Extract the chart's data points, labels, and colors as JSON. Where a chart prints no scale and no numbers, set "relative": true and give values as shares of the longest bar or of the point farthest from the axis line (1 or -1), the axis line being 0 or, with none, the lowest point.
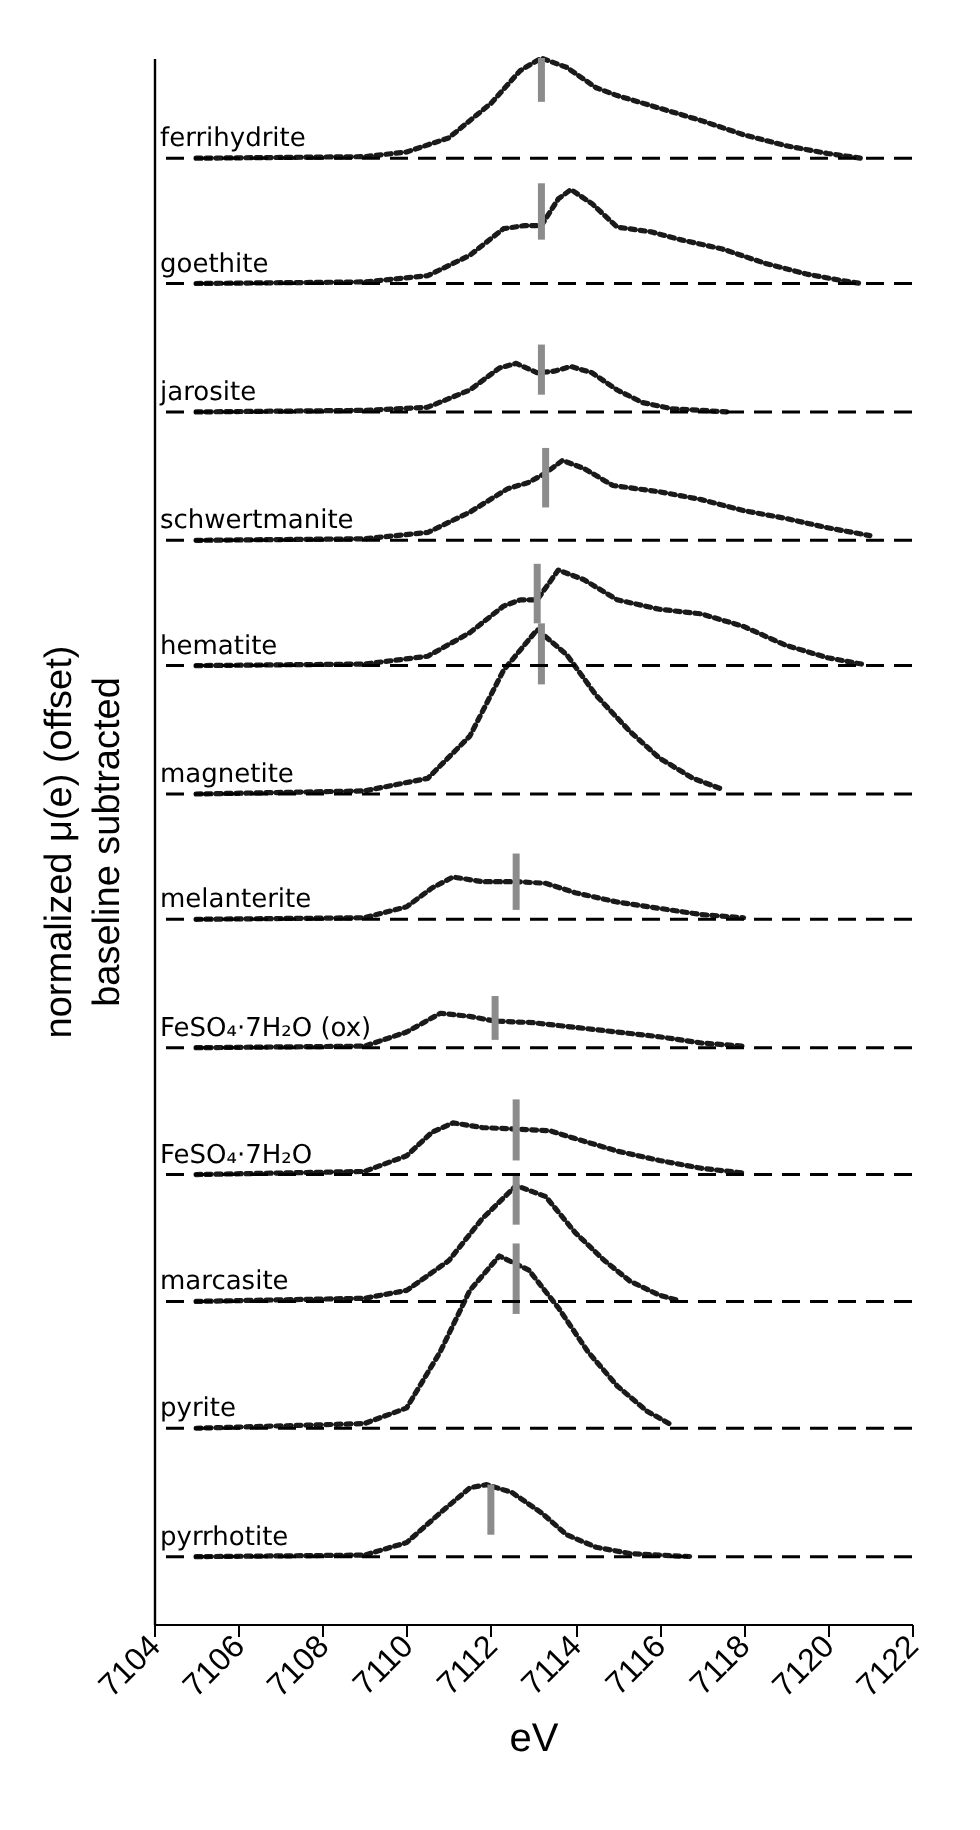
{
  "chart_data": {
    "type": "line",
    "relative": true,
    "xlabel": "eV",
    "ylabel": "normalized μ(e) (offset)\nbaseline subtracted",
    "xlim": [
      7104,
      7122
    ],
    "xticks": [
      7104,
      7106,
      7108,
      7110,
      7112,
      7114,
      7116,
      7118,
      7120,
      7122
    ],
    "line_style": "dotted",
    "ref_lines": [
      {
        "axis": "y",
        "value": 0.936,
        "color": "#000000",
        "line_style": "dashed"
      },
      {
        "axis": "y",
        "value": 0.856,
        "color": "#000000",
        "line_style": "dashed"
      },
      {
        "axis": "y",
        "value": 0.774,
        "color": "#000000",
        "line_style": "dashed"
      },
      {
        "axis": "y",
        "value": 0.692,
        "color": "#000000",
        "line_style": "dashed"
      },
      {
        "axis": "y",
        "value": 0.612,
        "color": "#000000",
        "line_style": "dashed"
      },
      {
        "axis": "y",
        "value": 0.53,
        "color": "#000000",
        "line_style": "dashed"
      },
      {
        "axis": "y",
        "value": 0.45,
        "color": "#000000",
        "line_style": "dashed"
      },
      {
        "axis": "y",
        "value": 0.368,
        "color": "#000000",
        "line_style": "dashed"
      },
      {
        "axis": "y",
        "value": 0.287,
        "color": "#000000",
        "line_style": "dashed"
      },
      {
        "axis": "y",
        "value": 0.206,
        "color": "#000000",
        "line_style": "dashed"
      },
      {
        "axis": "y",
        "value": 0.125,
        "color": "#000000",
        "line_style": "dashed"
      },
      {
        "axis": "y",
        "value": 0.043,
        "color": "#000000",
        "line_style": "dashed"
      }
    ],
    "series": [
      {
        "name": "ferrihydrite",
        "color": "#1a1a1a",
        "x": [
          7105,
          7109,
          7110,
          7111,
          7112,
          7112.7,
          7113.2,
          7113.8,
          7114.5,
          7115,
          7116,
          7117,
          7118,
          7119,
          7120,
          7120.8
        ],
        "values": [
          0.936,
          0.937,
          0.94,
          0.949,
          0.971,
          0.992,
          1.0,
          0.994,
          0.981,
          0.976,
          0.968,
          0.96,
          0.951,
          0.944,
          0.939,
          0.936
        ]
      },
      {
        "name": "goethite",
        "color": "#1a1a1a",
        "x": [
          7105,
          7109,
          7110.5,
          7111.5,
          7112.3,
          7112.8,
          7113.2,
          7113.6,
          7113.9,
          7114.4,
          7115,
          7115.8,
          7116.5,
          7117.5,
          7118.5,
          7119.5,
          7120.3,
          7120.8
        ],
        "values": [
          0.856,
          0.857,
          0.861,
          0.874,
          0.891,
          0.893,
          0.893,
          0.91,
          0.916,
          0.907,
          0.892,
          0.889,
          0.884,
          0.878,
          0.869,
          0.862,
          0.858,
          0.856
        ]
      },
      {
        "name": "jarosite",
        "color": "#1a1a1a",
        "x": [
          7105,
          7109,
          7110.5,
          7111.5,
          7112.2,
          7112.6,
          7113.1,
          7113.5,
          7113.9,
          7114.4,
          7115,
          7115.6,
          7116.3,
          7117,
          7117.6
        ],
        "values": [
          0.774,
          0.775,
          0.777,
          0.788,
          0.802,
          0.805,
          0.799,
          0.8,
          0.803,
          0.799,
          0.788,
          0.78,
          0.776,
          0.775,
          0.774
        ]
      },
      {
        "name": "schwertmanite",
        "color": "#1a1a1a",
        "x": [
          7105,
          7109,
          7110.5,
          7111.5,
          7112.4,
          7112.9,
          7113.3,
          7113.7,
          7114.2,
          7114.9,
          7116,
          7117,
          7118,
          7119,
          7120,
          7121
        ],
        "values": [
          0.692,
          0.693,
          0.697,
          0.71,
          0.725,
          0.729,
          0.735,
          0.743,
          0.738,
          0.727,
          0.723,
          0.718,
          0.711,
          0.706,
          0.7,
          0.695
        ]
      },
      {
        "name": "hematite",
        "color": "#1a1a1a",
        "x": [
          7105,
          7109,
          7110.5,
          7111.5,
          7112.3,
          7112.7,
          7113.1,
          7113.6,
          7114.2,
          7115,
          7116,
          7117,
          7118,
          7119,
          7120,
          7120.8
        ],
        "values": [
          0.612,
          0.613,
          0.618,
          0.633,
          0.65,
          0.654,
          0.654,
          0.673,
          0.667,
          0.654,
          0.648,
          0.645,
          0.637,
          0.625,
          0.617,
          0.613
        ]
      },
      {
        "name": "magnetite",
        "color": "#1a1a1a",
        "x": [
          7105,
          7109,
          7110.5,
          7111.5,
          7112.3,
          7113.1,
          7113.8,
          7114.5,
          7115.3,
          7116,
          7116.8,
          7117.5
        ],
        "values": [
          0.53,
          0.532,
          0.54,
          0.567,
          0.609,
          0.635,
          0.619,
          0.593,
          0.57,
          0.553,
          0.54,
          0.533
        ]
      },
      {
        "name": "melanterite",
        "color": "#1a1a1a",
        "x": [
          7105,
          7109,
          7110,
          7110.6,
          7111.1,
          7111.8,
          7112.6,
          7113.3,
          7114,
          7115,
          7116,
          7117,
          7118
        ],
        "values": [
          0.45,
          0.451,
          0.458,
          0.47,
          0.477,
          0.474,
          0.474,
          0.473,
          0.467,
          0.461,
          0.457,
          0.453,
          0.451
        ]
      },
      {
        "name": "FeSO₄·7H₂O (ox)",
        "color": "#1a1a1a",
        "x": [
          7105,
          7109,
          7110,
          7110.8,
          7111.5,
          7112.1,
          7113,
          7114,
          7115,
          7116,
          7117,
          7118
        ],
        "values": [
          0.368,
          0.369,
          0.378,
          0.39,
          0.388,
          0.385,
          0.384,
          0.381,
          0.378,
          0.375,
          0.371,
          0.369
        ]
      },
      {
        "name": "FeSO₄·7H₂O",
        "color": "#1a1a1a",
        "x": [
          7105,
          7109,
          7110,
          7110.6,
          7111.1,
          7111.8,
          7112.6,
          7113.4,
          7114,
          7115,
          7116,
          7117,
          7118
        ],
        "values": [
          0.287,
          0.289,
          0.299,
          0.314,
          0.32,
          0.317,
          0.316,
          0.315,
          0.31,
          0.302,
          0.296,
          0.291,
          0.288
        ]
      },
      {
        "name": "marcasite",
        "color": "#1a1a1a",
        "x": [
          7105,
          7109,
          7110,
          7111,
          7111.8,
          7112.6,
          7113.3,
          7114,
          7114.7,
          7115.3,
          7116,
          7116.4
        ],
        "values": [
          0.206,
          0.208,
          0.213,
          0.232,
          0.259,
          0.28,
          0.273,
          0.25,
          0.232,
          0.219,
          0.21,
          0.207
        ]
      },
      {
        "name": "pyrite",
        "color": "#1a1a1a",
        "x": [
          7105,
          7109,
          7110,
          7110.8,
          7111.5,
          7112.2,
          7112.9,
          7113.6,
          7114.3,
          7115,
          7115.7,
          7116.3
        ],
        "values": [
          0.125,
          0.128,
          0.138,
          0.174,
          0.213,
          0.235,
          0.226,
          0.202,
          0.174,
          0.152,
          0.136,
          0.127
        ]
      },
      {
        "name": "pyrrhotite",
        "color": "#1a1a1a",
        "x": [
          7105,
          7109,
          7110,
          7110.8,
          7111.5,
          7111.9,
          7112.5,
          7113.2,
          7113.8,
          7114.5,
          7115.3,
          7116,
          7116.8
        ],
        "values": [
          0.043,
          0.044,
          0.052,
          0.071,
          0.087,
          0.089,
          0.084,
          0.071,
          0.057,
          0.049,
          0.045,
          0.044,
          0.043
        ]
      },
      {
        "color": "#8c8c8c",
        "line_style": "solid",
        "x": [
          7113.2,
          7113.2
        ],
        "values": [
          0.972,
          1.0
        ]
      },
      {
        "color": "#8c8c8c",
        "line_style": "solid",
        "x": [
          7113.2,
          7113.2
        ],
        "values": [
          0.884,
          0.92
        ]
      },
      {
        "color": "#8c8c8c",
        "line_style": "solid",
        "x": [
          7113.2,
          7113.2
        ],
        "values": [
          0.785,
          0.817
        ]
      },
      {
        "color": "#8c8c8c",
        "line_style": "solid",
        "x": [
          7113.3,
          7113.3
        ],
        "values": [
          0.713,
          0.751
        ]
      },
      {
        "color": "#8c8c8c",
        "line_style": "solid",
        "x": [
          7113.1,
          7113.1
        ],
        "values": [
          0.639,
          0.677
        ]
      },
      {
        "color": "#8c8c8c",
        "line_style": "solid",
        "x": [
          7113.2,
          7113.2
        ],
        "values": [
          0.6,
          0.639
        ]
      },
      {
        "color": "#8c8c8c",
        "line_style": "solid",
        "x": [
          7112.6,
          7112.6
        ],
        "values": [
          0.456,
          0.492
        ]
      },
      {
        "color": "#8c8c8c",
        "line_style": "solid",
        "x": [
          7112.1,
          7112.1
        ],
        "values": [
          0.373,
          0.401
        ]
      },
      {
        "color": "#8c8c8c",
        "line_style": "solid",
        "x": [
          7112.6,
          7112.6
        ],
        "values": [
          0.296,
          0.335
        ]
      },
      {
        "color": "#8c8c8c",
        "line_style": "solid",
        "x": [
          7112.6,
          7112.6
        ],
        "values": [
          0.255,
          0.287
        ]
      },
      {
        "color": "#8c8c8c",
        "line_style": "solid",
        "x": [
          7112.6,
          7112.6
        ],
        "values": [
          0.198,
          0.243
        ]
      },
      {
        "color": "#8c8c8c",
        "line_style": "solid",
        "x": [
          7112.0,
          7112.0
        ],
        "values": [
          0.057,
          0.089
        ]
      }
    ]
  }
}
